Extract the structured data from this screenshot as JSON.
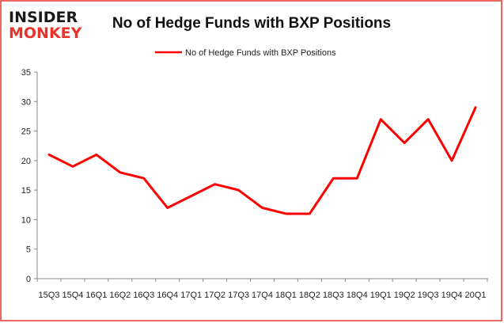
{
  "logo": {
    "line1": "INSIDER",
    "line2": "MONKEY"
  },
  "colors": {
    "series": "#ff0000",
    "frame_border": "#e8332a",
    "axis": "#888888",
    "logo_red": "#e8332a"
  },
  "chart_data": {
    "type": "line",
    "title": "No of Hedge Funds with BXP Positions",
    "legend_position": "top-center",
    "grid": false,
    "xlabel": "",
    "ylabel": "",
    "ylim": [
      0,
      35
    ],
    "yticks": [
      "0",
      "5",
      "10",
      "15",
      "20",
      "25",
      "30",
      "35"
    ],
    "categories": [
      "15Q3",
      "15Q4",
      "16Q1",
      "16Q2",
      "16Q3",
      "16Q4",
      "17Q1",
      "17Q2",
      "17Q3",
      "17Q4",
      "18Q1",
      "18Q2",
      "18Q3",
      "18Q4",
      "19Q1",
      "19Q2",
      "19Q3",
      "19Q4",
      "20Q1"
    ],
    "series": [
      {
        "name": "No of Hedge Funds with BXP Positions",
        "values": [
          21,
          19,
          21,
          18,
          17,
          12,
          14,
          16,
          15,
          12,
          11,
          11,
          17,
          17,
          27,
          23,
          27,
          20,
          29
        ]
      }
    ]
  }
}
